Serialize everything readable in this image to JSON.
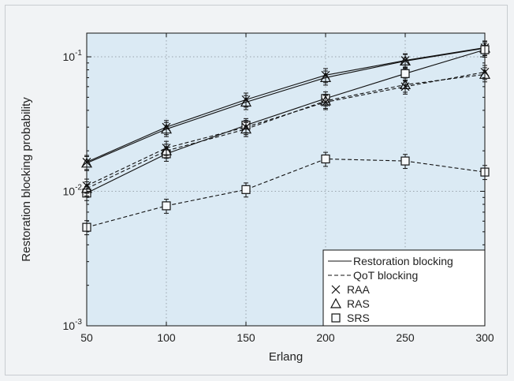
{
  "chart_data": {
    "type": "line",
    "title": "",
    "xlabel": "Erlang",
    "ylabel": "Restoration blocking probability",
    "x": [
      50,
      100,
      150,
      200,
      250,
      300
    ],
    "xlim": [
      50,
      300
    ],
    "ylim": [
      0.001,
      0.15
    ],
    "yscale": "log",
    "grid": true,
    "legend_position": "bottom-right",
    "background_color": "#dbeaf4",
    "x_ticks": [
      "50",
      "100",
      "150",
      "200",
      "250",
      "300"
    ],
    "y_ticks": [
      {
        "base": "10",
        "exp": "-3",
        "value": 0.001
      },
      {
        "base": "10",
        "exp": "-2",
        "value": 0.01
      },
      {
        "base": "10",
        "exp": "-1",
        "value": 0.1
      }
    ],
    "legend": {
      "line_styles": [
        {
          "label": "Restoration blocking",
          "style": "solid"
        },
        {
          "label": "QoT blocking",
          "style": "dashed"
        }
      ],
      "markers": [
        {
          "label": "RAA",
          "marker": "x"
        },
        {
          "label": "RAS",
          "marker": "triangle"
        },
        {
          "label": "SRS",
          "marker": "square"
        }
      ]
    },
    "series": [
      {
        "algorithm": "RAA",
        "style": "solid",
        "marker": "x",
        "values": [
          0.0165,
          0.03,
          0.048,
          0.073,
          0.094,
          0.117
        ]
      },
      {
        "algorithm": "RAS",
        "style": "solid",
        "marker": "triangle",
        "values": [
          0.0162,
          0.029,
          0.046,
          0.07,
          0.093,
          0.116
        ]
      },
      {
        "algorithm": "SRS",
        "style": "solid",
        "marker": "square",
        "values": [
          0.0097,
          0.019,
          0.031,
          0.049,
          0.075,
          0.113
        ]
      },
      {
        "algorithm": "RAA",
        "style": "dashed",
        "marker": "x",
        "values": [
          0.011,
          0.021,
          0.03,
          0.046,
          0.06,
          0.077
        ]
      },
      {
        "algorithm": "RAS",
        "style": "dashed",
        "marker": "triangle",
        "values": [
          0.0105,
          0.02,
          0.029,
          0.047,
          0.062,
          0.074
        ]
      },
      {
        "algorithm": "SRS",
        "style": "dashed",
        "marker": "square",
        "values": [
          0.0054,
          0.0078,
          0.0103,
          0.0174,
          0.0168,
          0.0139
        ]
      }
    ]
  }
}
